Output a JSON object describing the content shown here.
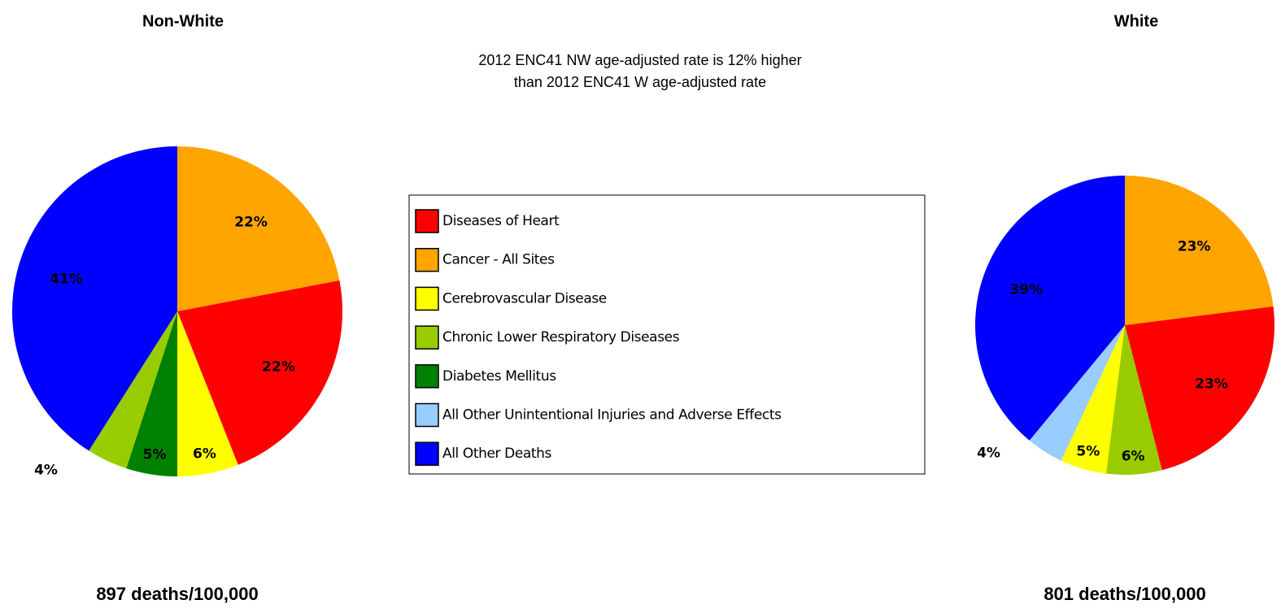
{
  "chart_data": [
    {
      "type": "pie",
      "title": "Non-White",
      "footnote": "897 deaths/100,000",
      "categories": [
        "Cancer - All Sites",
        "Diseases of Heart",
        "Cerebrovascular Disease",
        "Diabetes Mellitus",
        "Chronic Lower Respiratory Diseases",
        "All Other Deaths"
      ],
      "values": [
        22,
        22,
        6,
        5,
        4,
        41
      ],
      "value_labels": [
        "22%",
        "22%",
        "6%",
        "5%",
        "4%",
        "41%"
      ],
      "colors": [
        "#ffa500",
        "#ff0000",
        "#ffff00",
        "#008000",
        "#99cc00",
        "#0000ff"
      ]
    },
    {
      "type": "pie",
      "title": "White",
      "footnote": "801 deaths/100,000",
      "categories": [
        "Cancer - All Sites",
        "Diseases of Heart",
        "Chronic Lower Respiratory Diseases",
        "Cerebrovascular Disease",
        "All Other Unintentional Injuries and Adverse Effects",
        "All Other Deaths"
      ],
      "values": [
        23,
        23,
        6,
        5,
        4,
        39
      ],
      "value_labels": [
        "23%",
        "23%",
        "6%",
        "5%",
        "4%",
        "39%"
      ],
      "colors": [
        "#ffa500",
        "#ff0000",
        "#99cc00",
        "#ffff00",
        "#99ccff",
        "#0000ff"
      ]
    }
  ],
  "annotation": [
    "2012 ENC41 NW age-adjusted rate is 12% higher",
    "than 2012 ENC41 W age-adjusted rate"
  ],
  "legend": [
    {
      "name": "Diseases of Heart",
      "color": "#ff0000"
    },
    {
      "name": "Cancer - All Sites",
      "color": "#ffa500"
    },
    {
      "name": "Cerebrovascular Disease",
      "color": "#ffff00"
    },
    {
      "name": "Chronic Lower Respiratory Diseases",
      "color": "#99cc00"
    },
    {
      "name": "Diabetes Mellitus",
      "color": "#008000"
    },
    {
      "name": "All Other Unintentional Injuries and Adverse Effects",
      "color": "#99ccff"
    },
    {
      "name": "All Other Deaths",
      "color": "#0000ff"
    }
  ]
}
